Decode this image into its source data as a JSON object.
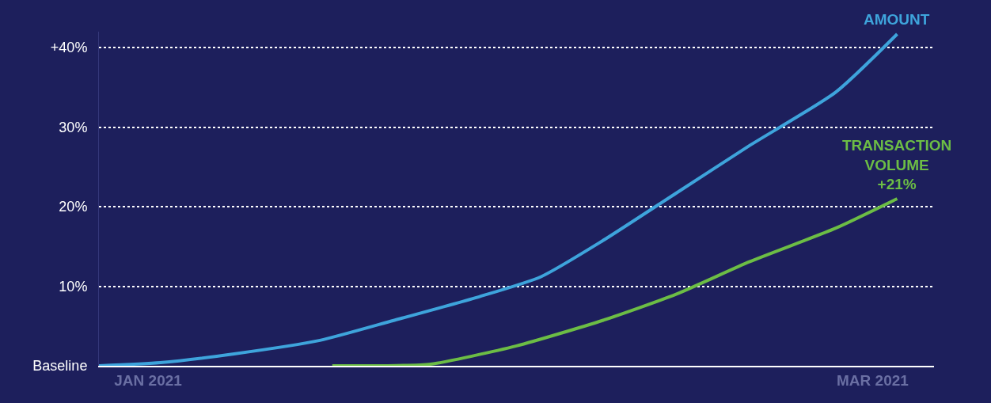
{
  "chart_data": {
    "type": "line",
    "x": [
      "2020-12-28",
      "2021-01-02",
      "2021-01-08",
      "2021-01-15",
      "2021-01-21",
      "2021-01-28",
      "2021-02-02",
      "2021-02-07",
      "2021-02-13",
      "2021-02-19",
      "2021-02-26",
      "2021-03-03"
    ],
    "series": [
      {
        "color": "#3ea4dc",
        "values": [
          0,
          0.4,
          1.5,
          3.2,
          5.7,
          8.7,
          11.2,
          15.7,
          21.7,
          27.7,
          34.4,
          41.7
        ]
      },
      {
        "color": "#6cbd45",
        "x": [
          "2021-01-16",
          "2021-01-20",
          "2021-01-24",
          "2021-01-31",
          "2021-02-07",
          "2021-02-13",
          "2021-02-19",
          "2021-02-26",
          "2021-03-03"
        ],
        "values": [
          0,
          0,
          0.2,
          2.5,
          5.7,
          9,
          13.1,
          17.3,
          21
        ]
      }
    ],
    "xlim": [
      "2020-12-28",
      "2021-03-06"
    ],
    "xticks": [
      {
        "value": "2021-01-01",
        "label": "JAN 2021"
      },
      {
        "value": "2021-03-01",
        "label": "MAR 2021"
      }
    ],
    "ylim": [
      0,
      42
    ],
    "yticks": [
      {
        "value": 0,
        "label": "Baseline"
      },
      {
        "value": 10,
        "label": "10%"
      },
      {
        "value": 20,
        "label": "20%"
      },
      {
        "value": 30,
        "label": "30%"
      },
      {
        "value": 40,
        "label": "+40%"
      }
    ],
    "grid": "y",
    "line_style": "solid",
    "marker": "none",
    "legend": false,
    "annotations": [
      {
        "text": "AMOUNT",
        "x": "2021-03-03",
        "y": 41.7
      },
      {
        "text": "TRANSACTION\nVOLUME\n+21%",
        "x": "2021-03-03",
        "y": 21
      }
    ]
  }
}
